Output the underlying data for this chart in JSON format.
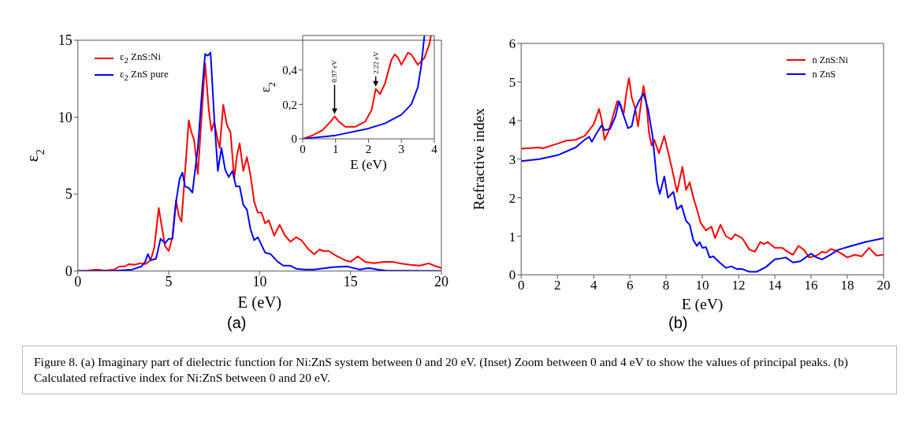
{
  "chart_data": [
    {
      "type": "line",
      "xlabel": "E (eV)",
      "ylabel": "ε$_{2}$",
      "xlim": [
        0,
        20
      ],
      "ylim": [
        0,
        15
      ],
      "xticks": [
        0,
        5,
        10,
        15,
        20
      ],
      "yticks": [
        0,
        5,
        10,
        15
      ],
      "legend": "top left",
      "marker": "none",
      "line_style": "solid",
      "annotations": [
        "(a)",
        "Figure 8. (a) Imaginary part of dielectric function for Ni:ZnS system between 0 and 20 eV. (Inset) Zoom between 0 and 4 eV to show the values of principal peaks. (b) Calculated refractive index for Ni:ZnS between 0 and 20 eV."
      ],
      "series": [
        {
          "name": "ε$_{2}$ ZnS:Ni",
          "color": "#ff0000",
          "x": [
            0,
            0.5,
            1,
            1.5,
            2,
            2.3,
            2.6,
            2.8,
            3.1,
            3.4,
            3.7,
            4.0,
            4.2,
            4.45,
            4.6,
            4.8,
            5.0,
            5.2,
            5.4,
            5.55,
            5.7,
            5.9,
            6.1,
            6.25,
            6.4,
            6.6,
            6.75,
            7.0,
            7.2,
            7.35,
            7.5,
            7.7,
            7.8,
            8.0,
            8.2,
            8.4,
            8.6,
            8.75,
            8.9,
            9.1,
            9.3,
            9.5,
            9.7,
            9.9,
            10.1,
            10.3,
            10.5,
            10.8,
            11.1,
            11.4,
            11.7,
            12.0,
            12.3,
            12.7,
            13.0,
            13.3,
            13.5,
            13.8,
            14.2,
            14.7,
            15.0,
            15.4,
            15.8,
            16.3,
            16.8,
            17.3,
            17.7,
            18.3,
            18.8,
            19.3,
            19.6,
            20
          ],
          "values": [
            0,
            0.02,
            0.1,
            0.03,
            0.1,
            0.3,
            0.3,
            0.45,
            0.4,
            0.5,
            0.45,
            0.7,
            1.5,
            4.1,
            3.0,
            1.6,
            1.3,
            2.2,
            4.6,
            3.6,
            3.2,
            6.5,
            9.8,
            9.0,
            8.5,
            6.3,
            9.0,
            13.5,
            10.5,
            9.1,
            9.7,
            8.5,
            8.0,
            10.8,
            9.5,
            9.0,
            6.0,
            7.5,
            8.3,
            6.5,
            7.4,
            6.2,
            4.5,
            3.8,
            3.8,
            3.1,
            3.3,
            2.3,
            3.0,
            2.3,
            1.9,
            2.2,
            2.0,
            1.4,
            1.1,
            1.4,
            1.3,
            1.3,
            1.0,
            0.7,
            0.6,
            0.95,
            0.6,
            0.5,
            0.6,
            0.6,
            0.5,
            0.4,
            0.35,
            0.5,
            0.35,
            0.2
          ]
        },
        {
          "name": "ε$_{2}$ ZnS pure",
          "color": "#0000ff",
          "x": [
            0,
            2,
            3,
            3.5,
            3.7,
            3.85,
            4.0,
            4.3,
            4.55,
            4.8,
            5.0,
            5.2,
            5.4,
            5.6,
            5.75,
            5.9,
            6.1,
            6.3,
            6.6,
            6.85,
            7.0,
            7.15,
            7.3,
            7.5,
            7.7,
            7.9,
            8.1,
            8.3,
            8.5,
            8.7,
            8.9,
            9.1,
            9.3,
            9.5,
            9.7,
            9.9,
            10.1,
            10.3,
            10.6,
            11.0,
            11.3,
            11.7,
            12.0,
            12.5,
            13.0,
            14.0,
            14.8,
            15.5,
            16.0,
            16.5,
            17,
            20
          ],
          "values": [
            0,
            0.02,
            0.1,
            0.3,
            0.6,
            1.1,
            0.7,
            0.8,
            2.1,
            1.8,
            2.1,
            2.1,
            4.5,
            6.0,
            6.4,
            5.5,
            5.4,
            5.1,
            8.0,
            12.0,
            14.1,
            14.0,
            14.2,
            10.0,
            6.5,
            8.0,
            6.6,
            6.1,
            6.5,
            5.5,
            5.5,
            4.3,
            4.0,
            2.7,
            2.0,
            2.2,
            1.7,
            1.2,
            1.1,
            0.6,
            0.35,
            0.35,
            0.15,
            0.1,
            0.1,
            0.25,
            0.3,
            0.1,
            0.2,
            0.1,
            0.02,
            0
          ]
        }
      ]
    },
    {
      "type": "line",
      "xlabel": "E (eV)",
      "ylabel": "ε$_{2}$",
      "xlim": [
        0,
        4
      ],
      "ylim": [
        0,
        0.6
      ],
      "xticks": [
        0,
        1,
        2,
        3,
        4
      ],
      "yticks": [
        0,
        {
          "value": 0.2,
          "label": "0,2"
        },
        {
          "value": 0.4,
          "label": "0,4"
        }
      ],
      "marker": "none",
      "line_style": "solid",
      "annotations": [
        {
          "text": "0.97 eV",
          "x": 0.97,
          "y": 0.13
        },
        {
          "text": "2.22 eV",
          "x": 2.22,
          "y": 0.29
        }
      ],
      "series": [
        {
          "color": "#ff0000",
          "x": [
            0,
            0.3,
            0.6,
            0.85,
            0.97,
            1.1,
            1.3,
            1.6,
            1.9,
            2.1,
            2.22,
            2.35,
            2.5,
            2.7,
            2.8,
            2.9,
            3.0,
            3.2,
            3.3,
            3.5,
            3.7,
            3.85,
            3.9
          ],
          "values": [
            0,
            0.02,
            0.05,
            0.1,
            0.13,
            0.1,
            0.07,
            0.07,
            0.1,
            0.17,
            0.29,
            0.26,
            0.32,
            0.46,
            0.49,
            0.47,
            0.43,
            0.5,
            0.49,
            0.43,
            0.47,
            0.55,
            0.6
          ]
        },
        {
          "color": "#0000ff",
          "x": [
            0,
            1,
            2,
            2.5,
            3.0,
            3.3,
            3.5,
            3.6,
            3.7
          ],
          "values": [
            0,
            0.02,
            0.06,
            0.09,
            0.14,
            0.2,
            0.3,
            0.42,
            0.6
          ]
        }
      ]
    },
    {
      "type": "line",
      "xlabel": "E (eV)",
      "ylabel": "Refractive index",
      "xlim": [
        0,
        20
      ],
      "ylim": [
        0,
        6
      ],
      "xticks": [
        0,
        2,
        4,
        6,
        8,
        10,
        12,
        14,
        16,
        18,
        20
      ],
      "yticks": [
        0,
        1,
        2,
        3,
        4,
        5,
        6
      ],
      "legend": "top right",
      "marker": "none",
      "line_style": "solid",
      "annotations": [
        "(b)"
      ],
      "series": [
        {
          "name": "n ZnS:Ni",
          "color": "#ff0000",
          "x": [
            0,
            1,
            1.2,
            2,
            2.5,
            3,
            3.5,
            4,
            4.3,
            4.45,
            4.6,
            4.8,
            5.0,
            5.3,
            5.5,
            5.65,
            5.8,
            5.95,
            6.1,
            6.3,
            6.45,
            6.6,
            6.75,
            6.9,
            7.05,
            7.2,
            7.35,
            7.6,
            7.9,
            8.1,
            8.3,
            8.6,
            8.9,
            9.1,
            9.3,
            9.5,
            9.7,
            9.9,
            10.2,
            10.5,
            10.7,
            11,
            11.3,
            11.6,
            11.8,
            12.2,
            12.6,
            12.9,
            13.2,
            13.4,
            13.6,
            14,
            14.4,
            14.7,
            15.0,
            15.3,
            15.6,
            15.9,
            16.3,
            16.6,
            16.8,
            17.1,
            17.5,
            18.0,
            18.4,
            18.8,
            19.2,
            19.6,
            20
          ],
          "values": [
            3.27,
            3.3,
            3.28,
            3.4,
            3.48,
            3.5,
            3.6,
            3.9,
            4.3,
            4.0,
            3.5,
            3.7,
            4.0,
            4.5,
            4.4,
            4.15,
            4.7,
            5.1,
            4.6,
            4.3,
            3.85,
            4.4,
            4.9,
            4.5,
            3.7,
            3.35,
            3.5,
            3.15,
            3.6,
            3.2,
            2.8,
            2.15,
            2.8,
            2.2,
            2.4,
            2.0,
            1.7,
            1.35,
            1.15,
            1.25,
            0.95,
            1.3,
            1.0,
            0.92,
            1.05,
            0.95,
            0.65,
            0.6,
            0.85,
            0.8,
            0.85,
            0.7,
            0.7,
            0.6,
            0.52,
            0.75,
            0.65,
            0.45,
            0.5,
            0.6,
            0.57,
            0.67,
            0.6,
            0.45,
            0.52,
            0.48,
            0.7,
            0.5,
            0.52
          ]
        },
        {
          "name": "n ZnS",
          "color": "#0000ff",
          "x": [
            0,
            1,
            2,
            3,
            3.5,
            3.75,
            3.9,
            4.2,
            4.45,
            4.6,
            4.9,
            5.2,
            5.4,
            5.6,
            5.9,
            6.1,
            6.3,
            6.5,
            6.75,
            7.0,
            7.25,
            7.5,
            7.65,
            7.9,
            8.1,
            8.4,
            8.6,
            8.85,
            9.1,
            9.3,
            9.5,
            9.7,
            9.85,
            10.0,
            10.2,
            10.4,
            10.6,
            11.0,
            11.3,
            11.6,
            11.9,
            12.2,
            12.6,
            13.0,
            13.5,
            14.0,
            14.3,
            14.6,
            15.0,
            15.4,
            15.7,
            16.0,
            16.3,
            16.6,
            17.0,
            17.5,
            18,
            19,
            20
          ],
          "values": [
            2.95,
            3.0,
            3.1,
            3.3,
            3.5,
            3.58,
            3.45,
            3.7,
            3.88,
            3.75,
            3.78,
            4.1,
            4.5,
            4.2,
            3.8,
            3.85,
            4.3,
            4.5,
            4.7,
            4.3,
            3.6,
            2.4,
            2.1,
            2.55,
            2.0,
            2.15,
            1.7,
            1.8,
            1.4,
            1.3,
            0.9,
            0.75,
            0.85,
            0.7,
            0.72,
            0.45,
            0.48,
            0.3,
            0.18,
            0.22,
            0.15,
            0.15,
            0.08,
            0.08,
            0.2,
            0.4,
            0.42,
            0.45,
            0.32,
            0.35,
            0.45,
            0.55,
            0.45,
            0.4,
            0.5,
            0.65,
            0.72,
            0.85,
            0.95
          ]
        }
      ]
    }
  ]
}
